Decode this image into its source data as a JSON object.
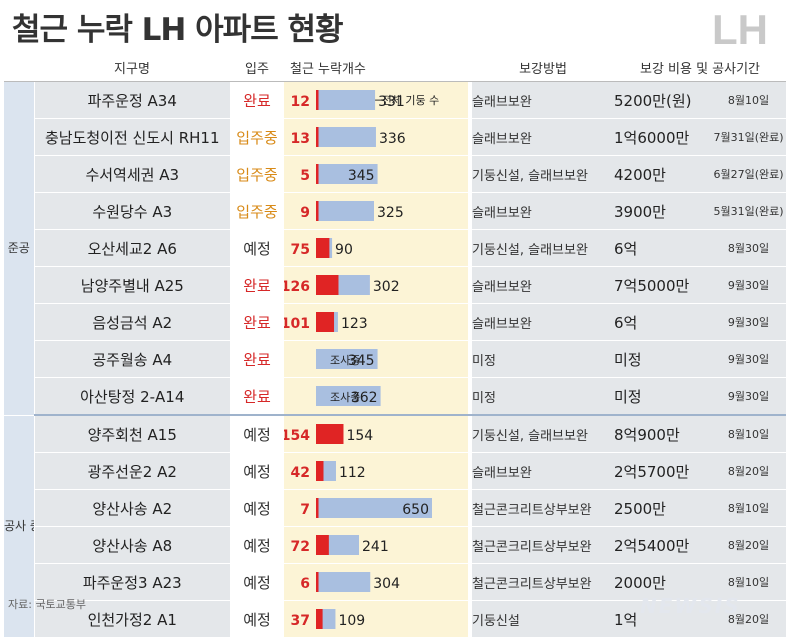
{
  "title": "철근 누락 LH 아파트 현황",
  "logo": "LH",
  "header": {
    "name": "지구명",
    "status": "입주",
    "bar": "철근 누락개수",
    "method": "보강방법",
    "cost": "보강 비용 및 공사기간"
  },
  "groups": {
    "completed": "준공",
    "construction": "공사 중"
  },
  "annotation": "전체 기둥 수",
  "source": "자료: 국토교통부",
  "watermark": "NEWSIS",
  "colors": {
    "missing": "#e02424",
    "total": "#a9bfe0",
    "survey": "#a9bfe0"
  },
  "chart_data": {
    "type": "table",
    "xmax": 650,
    "rows": [
      {
        "name": "파주운정 A34",
        "status": "완료",
        "missing": 12,
        "total": 331,
        "method": "슬래브보완",
        "cost": "5200만(원)",
        "date": "8월10일"
      },
      {
        "name": "충남도청이전 신도시 RH11",
        "status": "입주중",
        "missing": 13,
        "total": 336,
        "method": "슬래브보완",
        "cost": "1억6000만",
        "date": "7월31일(완료)"
      },
      {
        "name": "수서역세권 A3",
        "status": "입주중",
        "missing": 5,
        "total": 345,
        "method": "기둥신설, 슬래브보완",
        "cost": "4200만",
        "date": "6월27일(완료)"
      },
      {
        "name": "수원당수 A3",
        "status": "입주중",
        "missing": 9,
        "total": 325,
        "method": "슬래브보완",
        "cost": "3900만",
        "date": "5월31일(완료)"
      },
      {
        "name": "오산세교2 A6",
        "status": "예정",
        "missing": 75,
        "total": 90,
        "method": "기둥신설, 슬래브보완",
        "cost": "6억",
        "date": "8월30일"
      },
      {
        "name": "남양주별내 A25",
        "status": "완료",
        "missing": 126,
        "total": 302,
        "method": "슬래브보완",
        "cost": "7억5000만",
        "date": "9월30일"
      },
      {
        "name": "음성금석 A2",
        "status": "완료",
        "missing": 101,
        "total": 123,
        "method": "슬래브보완",
        "cost": "6억",
        "date": "9월30일"
      },
      {
        "name": "공주월송 A4",
        "status": "완료",
        "missing": "조사중",
        "total": 345,
        "method": "미정",
        "cost": "미정",
        "date": "9월30일"
      },
      {
        "name": "아산탕정 2-A14",
        "status": "완료",
        "missing": "조사중",
        "total": 362,
        "method": "미정",
        "cost": "미정",
        "date": "9월30일"
      },
      {
        "name": "양주회천 A15",
        "status": "예정",
        "missing": 154,
        "total": 154,
        "method": "기둥신설, 슬래브보완",
        "cost": "8억900만",
        "date": "8월10일"
      },
      {
        "name": "광주선운2 A2",
        "status": "예정",
        "missing": 42,
        "total": 112,
        "method": "슬래브보완",
        "cost": "2억5700만",
        "date": "8월20일"
      },
      {
        "name": "양산사송 A2",
        "status": "예정",
        "missing": 7,
        "total": 650,
        "method": "철근콘크리트상부보완",
        "cost": "2500만",
        "date": "8월10일"
      },
      {
        "name": "양산사송 A8",
        "status": "예정",
        "missing": 72,
        "total": 241,
        "method": "철근콘크리트상부보완",
        "cost": "2억5400만",
        "date": "8월20일"
      },
      {
        "name": "파주운정3 A23",
        "status": "예정",
        "missing": 6,
        "total": 304,
        "method": "철근콘크리트상부보완",
        "cost": "2000만",
        "date": "8월10일"
      },
      {
        "name": "인천가정2 A1",
        "status": "예정",
        "missing": 37,
        "total": 109,
        "method": "기둥신설",
        "cost": "1억",
        "date": "8월20일"
      }
    ]
  }
}
